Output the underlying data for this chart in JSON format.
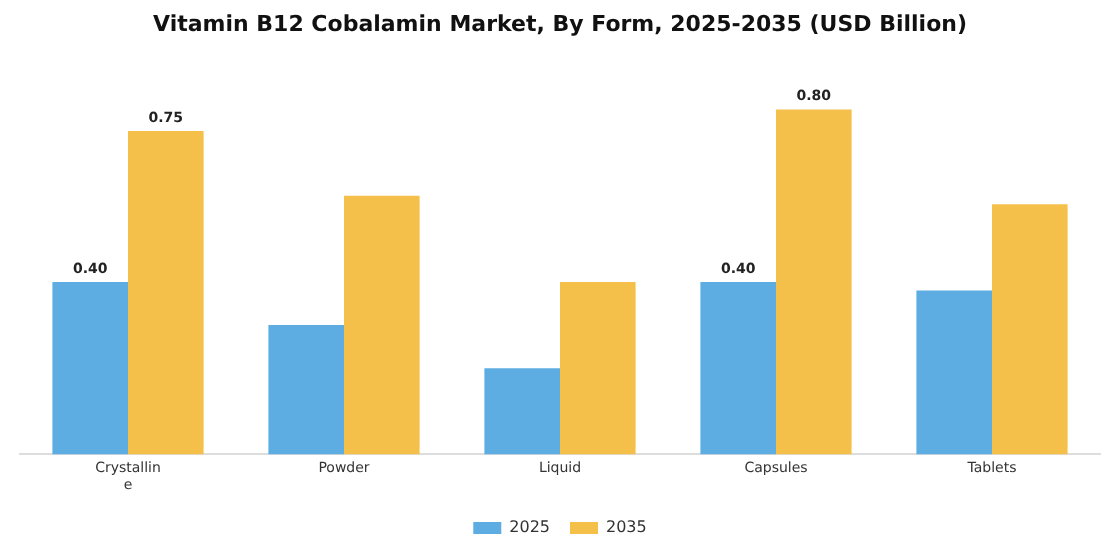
{
  "chart_data": {
    "type": "bar",
    "title": "Vitamin B12 Cobalamin Market, By Form, 2025-2035 (USD Billion)",
    "categories": [
      "Crystalline",
      "Powder",
      "Liquid",
      "Capsules",
      "Tablets"
    ],
    "series": [
      {
        "name": "2025",
        "color": "#5dade2",
        "values": [
          0.4,
          0.3,
          0.2,
          0.4,
          0.38
        ],
        "value_labels": [
          "0.40",
          null,
          null,
          "0.40",
          null
        ]
      },
      {
        "name": "2035",
        "color": "#f5c04a",
        "values": [
          0.75,
          0.6,
          0.4,
          0.8,
          0.58
        ],
        "value_labels": [
          "0.75",
          null,
          null,
          "0.80",
          null
        ]
      }
    ],
    "legend": "bottom",
    "grid": false,
    "tick_labels": "x"
  }
}
